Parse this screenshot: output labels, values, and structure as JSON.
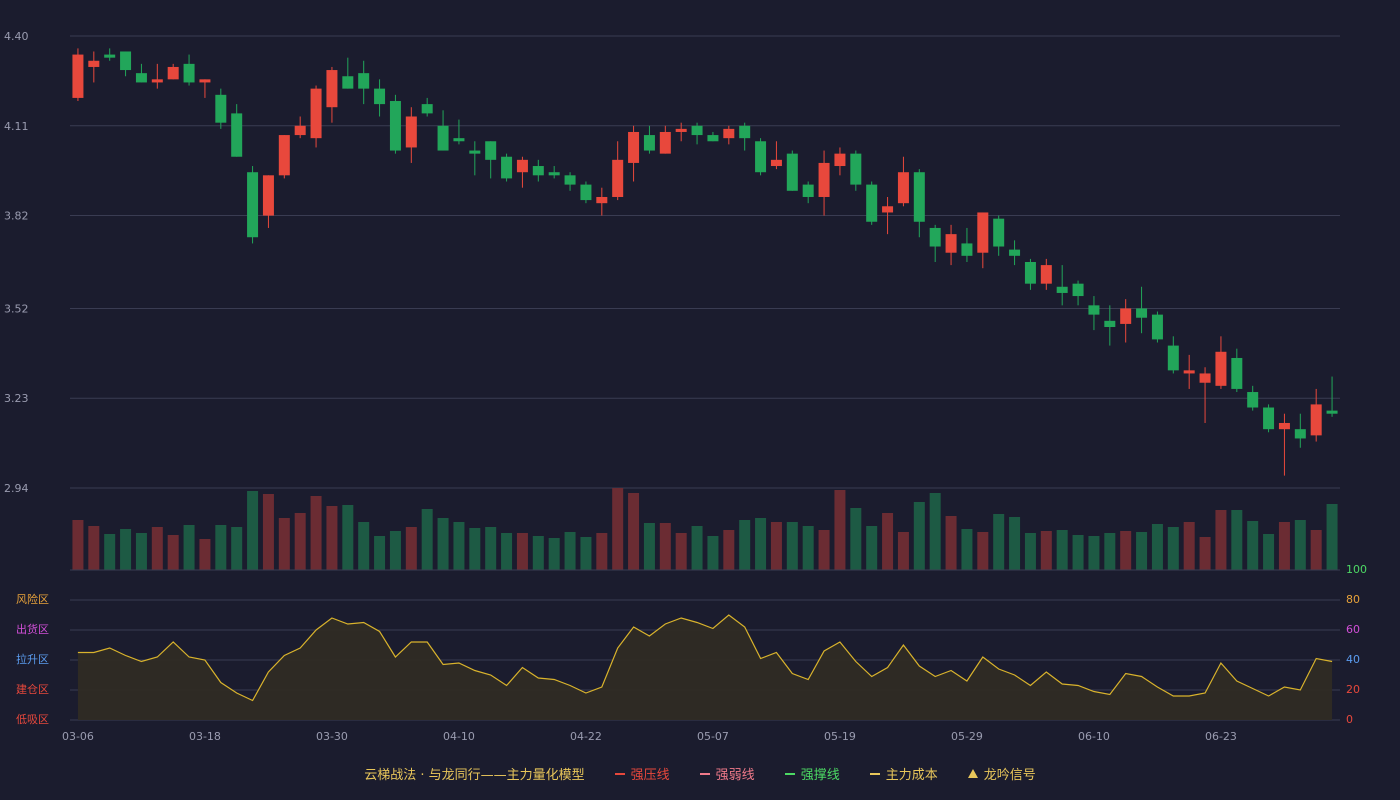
{
  "chart_data": [
    {
      "type": "candlestick",
      "categories": [
        "03-06",
        null,
        null,
        null,
        null,
        null,
        null,
        null,
        "03-18",
        null,
        null,
        null,
        null,
        null,
        null,
        null,
        "03-30",
        null,
        null,
        null,
        null,
        null,
        null,
        null,
        "04-10",
        null,
        null,
        null,
        null,
        null,
        null,
        null,
        "04-22",
        null,
        null,
        null,
        null,
        null,
        null,
        null,
        "05-07",
        null,
        null,
        null,
        null,
        null,
        null,
        null,
        "05-19",
        null,
        null,
        null,
        null,
        null,
        null,
        null,
        "05-29",
        null,
        null,
        null,
        null,
        null,
        null,
        null,
        "06-10",
        null,
        null,
        null,
        null,
        null,
        null,
        null,
        "06-23",
        null,
        null,
        null,
        null,
        null,
        null,
        null
      ],
      "open": [
        4.2,
        4.3,
        4.34,
        4.35,
        4.28,
        4.25,
        4.26,
        4.31,
        4.25,
        4.21,
        4.15,
        3.96,
        3.82,
        3.95,
        4.08,
        4.07,
        4.17,
        4.27,
        4.28,
        4.23,
        4.19,
        4.04,
        4.18,
        4.11,
        4.07,
        4.03,
        4.06,
        4.01,
        3.96,
        3.98,
        3.96,
        3.95,
        3.92,
        3.86,
        3.88,
        3.99,
        4.08,
        4.02,
        4.09,
        4.11,
        4.08,
        4.07,
        4.11,
        4.06,
        3.98,
        4.02,
        3.92,
        3.88,
        3.98,
        4.02,
        3.92,
        3.83,
        3.86,
        3.96,
        3.78,
        3.7,
        3.73,
        3.7,
        3.81,
        3.71,
        3.67,
        3.6,
        3.59,
        3.6,
        3.53,
        3.48,
        3.47,
        3.52,
        3.5,
        3.4,
        3.31,
        3.28,
        3.27,
        3.36,
        3.25,
        3.2,
        3.13,
        3.13,
        3.11,
        3.19
      ],
      "high": [
        4.36,
        4.35,
        4.36,
        4.35,
        4.31,
        4.31,
        4.31,
        4.34,
        4.26,
        4.23,
        4.18,
        3.98,
        3.95,
        4.08,
        4.14,
        4.24,
        4.3,
        4.33,
        4.32,
        4.26,
        4.21,
        4.17,
        4.2,
        4.16,
        4.13,
        4.06,
        4.06,
        4.02,
        4.01,
        4.0,
        3.98,
        3.96,
        3.93,
        3.91,
        4.06,
        4.11,
        4.11,
        4.11,
        4.12,
        4.12,
        4.09,
        4.11,
        4.12,
        4.07,
        4.06,
        4.03,
        3.93,
        4.03,
        4.04,
        4.03,
        3.93,
        3.88,
        4.01,
        3.97,
        3.79,
        3.79,
        3.78,
        3.83,
        3.82,
        3.74,
        3.68,
        3.68,
        3.66,
        3.61,
        3.56,
        3.53,
        3.55,
        3.59,
        3.51,
        3.43,
        3.37,
        3.33,
        3.43,
        3.39,
        3.27,
        3.21,
        3.18,
        3.18,
        3.26,
        3.3
      ],
      "low": [
        4.19,
        4.25,
        4.32,
        4.27,
        4.25,
        4.23,
        4.26,
        4.24,
        4.2,
        4.1,
        4.01,
        3.73,
        3.78,
        3.94,
        4.07,
        4.04,
        4.12,
        4.23,
        4.18,
        4.14,
        4.02,
        3.99,
        4.14,
        4.03,
        4.05,
        3.95,
        3.94,
        3.93,
        3.91,
        3.93,
        3.94,
        3.9,
        3.86,
        3.82,
        3.87,
        3.93,
        4.02,
        4.02,
        4.06,
        4.05,
        4.06,
        4.05,
        4.03,
        3.95,
        3.97,
        3.9,
        3.86,
        3.82,
        3.95,
        3.9,
        3.79,
        3.76,
        3.85,
        3.75,
        3.67,
        3.66,
        3.67,
        3.65,
        3.69,
        3.66,
        3.58,
        3.58,
        3.53,
        3.53,
        3.45,
        3.4,
        3.41,
        3.44,
        3.41,
        3.31,
        3.26,
        3.15,
        3.26,
        3.25,
        3.19,
        3.12,
        2.98,
        3.07,
        3.09,
        3.17
      ],
      "close": [
        4.34,
        4.32,
        4.33,
        4.29,
        4.25,
        4.26,
        4.3,
        4.25,
        4.26,
        4.12,
        4.01,
        3.75,
        3.95,
        4.08,
        4.11,
        4.23,
        4.29,
        4.23,
        4.23,
        4.18,
        4.03,
        4.14,
        4.15,
        4.03,
        4.06,
        4.02,
        4.0,
        3.94,
        4.0,
        3.95,
        3.95,
        3.92,
        3.87,
        3.88,
        4.0,
        4.09,
        4.03,
        4.09,
        4.1,
        4.08,
        4.06,
        4.1,
        4.07,
        3.96,
        4.0,
        3.9,
        3.88,
        3.99,
        4.02,
        3.92,
        3.8,
        3.85,
        3.96,
        3.8,
        3.72,
        3.76,
        3.69,
        3.83,
        3.72,
        3.69,
        3.6,
        3.66,
        3.57,
        3.56,
        3.5,
        3.46,
        3.52,
        3.49,
        3.42,
        3.32,
        3.32,
        3.31,
        3.38,
        3.26,
        3.2,
        3.13,
        3.15,
        3.1,
        3.21,
        3.18
      ],
      "up_color": "#e8483c",
      "down_color": "#22a65a",
      "ylim": [
        2.94,
        4.4
      ],
      "yticks": [
        {
          "value": 2.94,
          "label": "2.94"
        },
        {
          "value": 3.23,
          "label": "3.23"
        },
        {
          "value": 3.52,
          "label": "3.52"
        },
        {
          "value": 3.82,
          "label": "3.82"
        },
        {
          "value": 4.11,
          "label": "4.11"
        },
        {
          "value": 4.4,
          "label": "4.40"
        }
      ],
      "grid": true
    },
    {
      "type": "bar",
      "values": [
        50,
        44,
        36,
        41,
        37,
        43,
        35,
        45,
        31,
        45,
        43,
        79,
        76,
        52,
        57,
        74,
        64,
        65,
        48,
        34,
        39,
        43,
        61,
        52,
        48,
        42,
        43,
        37,
        37,
        34,
        32,
        38,
        33,
        37,
        82,
        77,
        47,
        47,
        37,
        44,
        34,
        40,
        50,
        52,
        48,
        48,
        44,
        40,
        80,
        62,
        44,
        57,
        38,
        68,
        77,
        54,
        41,
        38,
        56,
        53,
        37,
        39,
        40,
        35,
        34,
        37,
        39,
        38,
        46,
        43,
        48,
        33,
        60,
        60,
        49,
        36,
        48,
        50,
        40,
        66
      ],
      "up_color": "#6b2c33",
      "down_color": "#1d5a44",
      "ylim": [
        0,
        82
      ]
    },
    {
      "type": "line",
      "values": [
        45,
        45,
        48,
        43,
        39,
        42,
        52,
        42,
        40,
        25,
        18,
        13,
        32,
        43,
        48,
        60,
        68,
        64,
        65,
        59,
        42,
        52,
        52,
        37,
        38,
        33,
        30,
        23,
        35,
        28,
        27,
        23,
        18,
        22,
        48,
        62,
        56,
        64,
        68,
        65,
        61,
        70,
        62,
        41,
        45,
        31,
        27,
        46,
        52,
        39,
        29,
        35,
        50,
        36,
        29,
        33,
        26,
        42,
        34,
        30,
        23,
        32,
        24,
        23,
        19,
        17,
        31,
        29,
        22,
        16,
        16,
        18,
        38,
        26,
        21,
        16,
        22,
        20,
        41,
        39
      ],
      "color": "#d9b32c",
      "ylim": [
        0,
        100
      ],
      "yticks": [
        0,
        20,
        40,
        60,
        80,
        100
      ],
      "tick_colors": [
        "#e8483c",
        "#e8483c",
        "#5b9cf0",
        "#d24fd8",
        "#e8a23a",
        "#4cd964"
      ],
      "zones": [
        {
          "label": "风险区",
          "value": 80,
          "color": "#e8a23a"
        },
        {
          "label": "出货区",
          "value": 60,
          "color": "#d24fd8"
        },
        {
          "label": "拉升区",
          "value": 40,
          "color": "#5b9cf0"
        },
        {
          "label": "建仓区",
          "value": 20,
          "color": "#e8483c"
        },
        {
          "label": "低吸区",
          "value": 0,
          "color": "#e8483c"
        }
      ]
    }
  ],
  "legend": {
    "title": "云梯战法 · 与龙同行——主力量化模型",
    "items": [
      {
        "name": "强压线",
        "color": "#e8483c",
        "style": "solid"
      },
      {
        "name": "强弱线",
        "color": "#f07a8a",
        "style": "dashed"
      },
      {
        "name": "强撑线",
        "color": "#4cd964",
        "style": "solid"
      },
      {
        "name": "主力成本",
        "color": "#e8c65a",
        "style": "dashed"
      },
      {
        "name": "龙吟信号",
        "color": "#e8c65a",
        "style": "triangle"
      }
    ]
  }
}
